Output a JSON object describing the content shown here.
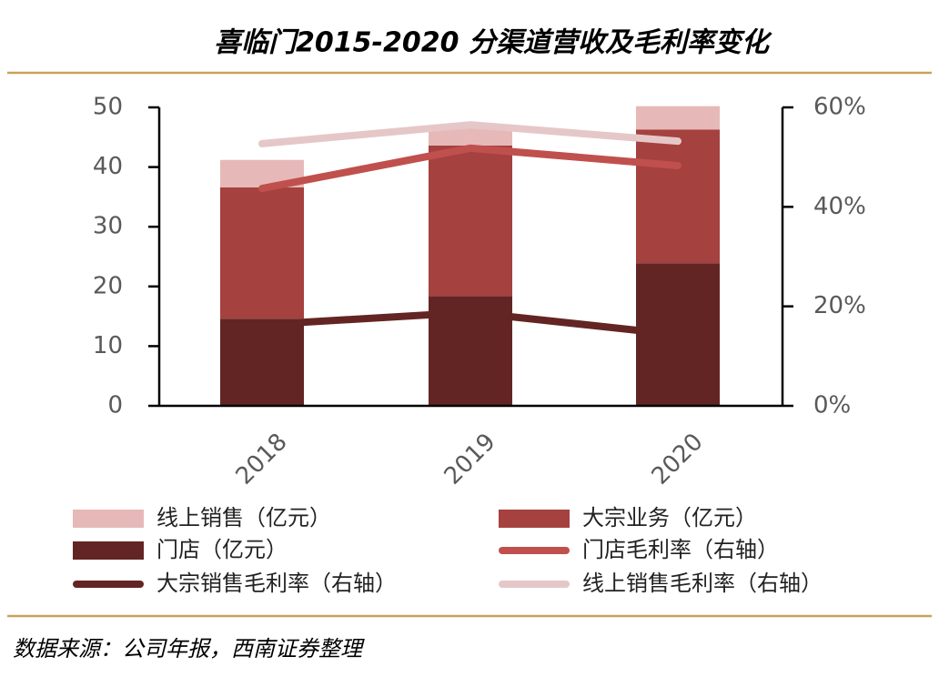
{
  "chart_data": {
    "type": "bar",
    "stacked": true,
    "title": "喜临门2015-2020 分渠道营收及毛利率变化",
    "source": "数据来源：公司年报，西南证券整理",
    "categories": [
      "2018",
      "2019",
      "2020"
    ],
    "ylim": [
      0,
      50
    ],
    "yticks": [
      0,
      10,
      20,
      30,
      40,
      50
    ],
    "y2lim": [
      0,
      60
    ],
    "y2ticks": [
      {
        "value": 0,
        "label": "0%"
      },
      {
        "value": 20,
        "label": "20%"
      },
      {
        "value": 40,
        "label": "40%"
      },
      {
        "value": 60,
        "label": "60%"
      }
    ],
    "series": [
      {
        "name": "门店（亿元）",
        "type": "bar",
        "color": "#632523",
        "values": [
          14.6,
          18.4,
          23.9
        ]
      },
      {
        "name": "大宗业务（亿元）",
        "type": "bar",
        "color": "#a5413f",
        "values": [
          22.0,
          25.2,
          22.4
        ]
      },
      {
        "name": "线上销售（亿元）",
        "type": "bar",
        "color": "#e6b9b8",
        "values": [
          4.6,
          3.4,
          3.9
        ]
      },
      {
        "name": "门店毛利率（右轴）",
        "type": "line",
        "axis": "y2",
        "color": "#c0504d",
        "values": [
          43.7,
          51.8,
          48.3
        ]
      },
      {
        "name": "大宗销售毛利率（右轴）",
        "type": "line",
        "axis": "y2",
        "color": "#632523",
        "values": [
          16.3,
          18.8,
          14.3
        ]
      },
      {
        "name": "线上销售毛利率（右轴）",
        "type": "line",
        "axis": "y2",
        "color": "#e6c7c7",
        "values": [
          52.7,
          56.5,
          53.2
        ]
      }
    ]
  }
}
